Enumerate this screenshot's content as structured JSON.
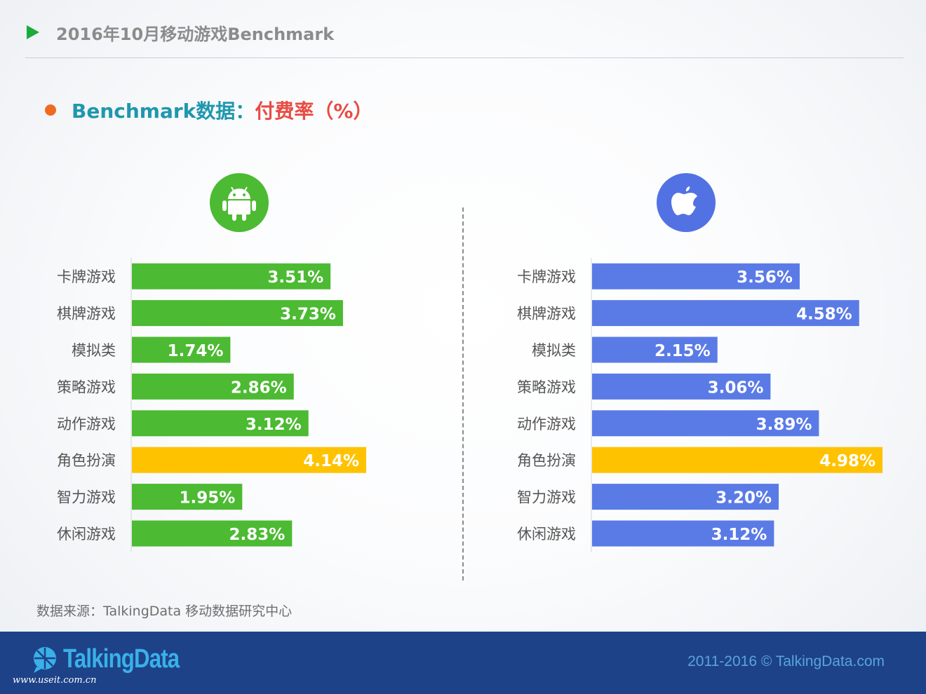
{
  "header": {
    "title": "2016年10月移动游戏Benchmark"
  },
  "section": {
    "title_prefix": "Benchmark数据：",
    "title_highlight": "付费率（%）"
  },
  "platforms": [
    {
      "icon": "android-icon",
      "color": "#4cba32"
    },
    {
      "icon": "apple-icon",
      "color": "#5271e3"
    }
  ],
  "colors": {
    "android_bar": "#4cba32",
    "ios_bar": "#5a7be6",
    "highlight_bar": "#ffc200",
    "label_text": "#555555",
    "value_text": "#ffffff"
  },
  "chart_data": [
    {
      "type": "bar",
      "orientation": "horizontal",
      "platform": "Android",
      "categories": [
        "卡牌游戏",
        "棋牌游戏",
        "模拟类",
        "策略游戏",
        "动作游戏",
        "角色扮演",
        "智力游戏",
        "休闲游戏"
      ],
      "values": [
        3.51,
        3.73,
        1.74,
        2.86,
        3.12,
        4.14,
        1.95,
        2.83
      ],
      "value_labels": [
        "3.51%",
        "3.73%",
        "1.74%",
        "2.86%",
        "3.12%",
        "4.14%",
        "1.95%",
        "2.83%"
      ],
      "highlight_index": 5,
      "xlim": [
        0,
        4.14
      ]
    },
    {
      "type": "bar",
      "orientation": "horizontal",
      "platform": "iOS",
      "categories": [
        "卡牌游戏",
        "棋牌游戏",
        "模拟类",
        "策略游戏",
        "动作游戏",
        "角色扮演",
        "智力游戏",
        "休闲游戏"
      ],
      "values": [
        3.56,
        4.58,
        2.15,
        3.06,
        3.89,
        4.98,
        3.2,
        3.12
      ],
      "value_labels": [
        "3.56%",
        "4.58%",
        "2.15%",
        "3.06%",
        "3.89%",
        "4.98%",
        "3.20%",
        "3.12%"
      ],
      "highlight_index": 5,
      "xlim": [
        0,
        4.98
      ]
    }
  ],
  "footer": {
    "source": "数据来源：TalkingData 移动数据研究中心",
    "brand": "TalkingData",
    "copyright": "2011-2016 © TalkingData.com",
    "watermark": "www.useit.com.cn"
  }
}
